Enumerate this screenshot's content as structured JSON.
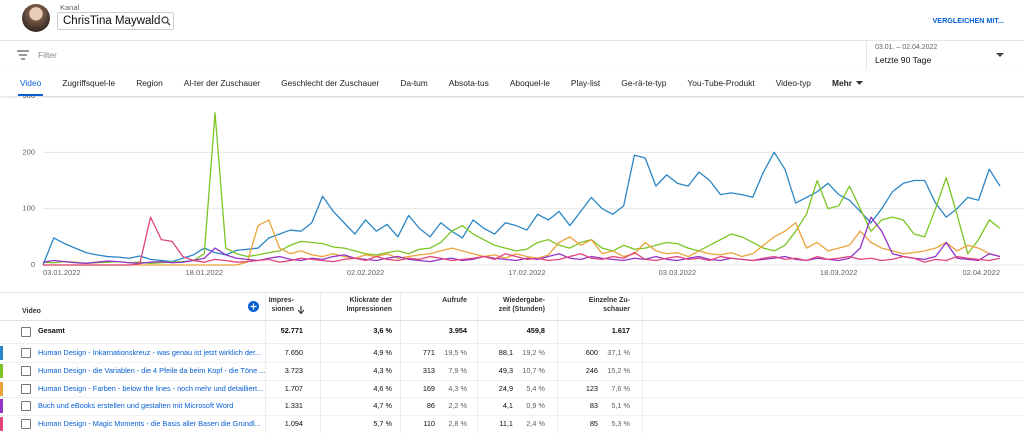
{
  "header": {
    "kanal": "Kanal",
    "channel": "ChrisTina Maywald",
    "compare": "VERGLEICHEN MIT..."
  },
  "filter": {
    "placeholder": "Filter",
    "date_range": "03.01. – 02.04.2022",
    "period": "Letzte 90 Tage"
  },
  "tabs": [
    "Video",
    "Zugriffsquel-le",
    "Region",
    "Al-ter der Zuschauer",
    "Geschlecht der Zuschauer",
    "Da-tum",
    "Absota-tus",
    "Aboquel-le",
    "Play-list",
    "Ge-rä-te-typ",
    "You-Tube-Produkt",
    "Video-typ"
  ],
  "more": "Mehr",
  "chart_data": {
    "type": "line",
    "x": [
      "03.01.2022",
      "04.01.2022",
      "05.01.2022",
      "06.01.2022",
      "07.01.2022",
      "08.01.2022",
      "09.01.2022",
      "10.01.2022",
      "11.01.2022",
      "12.01.2022",
      "13.01.2022",
      "14.01.2022",
      "15.01.2022",
      "16.01.2022",
      "17.01.2022",
      "18.01.2022",
      "19.01.2022",
      "20.01.2022",
      "21.01.2022",
      "22.01.2022",
      "23.01.2022",
      "24.01.2022",
      "25.01.2022",
      "26.01.2022",
      "27.01.2022",
      "28.01.2022",
      "29.01.2022",
      "30.01.2022",
      "31.01.2022",
      "01.02.2022",
      "02.02.2022",
      "03.02.2022",
      "04.02.2022",
      "05.02.2022",
      "06.02.2022",
      "07.02.2022",
      "08.02.2022",
      "09.02.2022",
      "10.02.2022",
      "11.02.2022",
      "12.02.2022",
      "13.02.2022",
      "14.02.2022",
      "15.02.2022",
      "16.02.2022",
      "17.02.2022",
      "18.02.2022",
      "19.02.2022",
      "20.02.2022",
      "21.02.2022",
      "22.02.2022",
      "23.02.2022",
      "24.02.2022",
      "25.02.2022",
      "26.02.2022",
      "27.02.2022",
      "28.02.2022",
      "01.03.2022",
      "02.03.2022",
      "03.03.2022",
      "04.03.2022",
      "05.03.2022",
      "06.03.2022",
      "07.03.2022",
      "08.03.2022",
      "09.03.2022",
      "10.03.2022",
      "11.03.2022",
      "12.03.2022",
      "13.03.2022",
      "14.03.2022",
      "15.03.2022",
      "16.03.2022",
      "17.03.2022",
      "18.03.2022",
      "19.03.2022",
      "20.03.2022",
      "21.03.2022",
      "22.03.2022",
      "23.03.2022",
      "24.03.2022",
      "25.03.2022",
      "26.03.2022",
      "27.03.2022",
      "28.03.2022",
      "29.03.2022",
      "30.03.2022",
      "31.03.2022",
      "01.04.2022",
      "02.04.2022"
    ],
    "xticks": [
      "03.01.2022",
      "18.01.2022",
      "02.02.2022",
      "17.02.2022",
      "03.03.2022",
      "18.03.2022",
      "02.04.2022"
    ],
    "ylim": [
      0,
      300
    ],
    "yticks": [
      0,
      100,
      200,
      300
    ],
    "grid": true,
    "series": [
      {
        "name": "Human Design - Inkarnationskreuz - was genau ist jetzt wirklich der...",
        "color": "#2b86c5",
        "values": [
          0,
          48,
          38,
          30,
          22,
          18,
          15,
          14,
          12,
          16,
          10,
          8,
          6,
          12,
          18,
          30,
          22,
          18,
          26,
          28,
          30,
          48,
          55,
          62,
          60,
          75,
          122,
          95,
          75,
          55,
          80,
          60,
          72,
          50,
          88,
          65,
          50,
          75,
          60,
          48,
          80,
          65,
          55,
          75,
          70,
          62,
          90,
          80,
          95,
          70,
          95,
          120,
          100,
          90,
          105,
          195,
          190,
          140,
          160,
          145,
          140,
          165,
          150,
          125,
          128,
          125,
          120,
          165,
          200,
          170,
          110,
          120,
          130,
          145,
          125,
          115,
          95,
          75,
          100,
          130,
          145,
          150,
          150,
          110,
          85,
          100,
          120,
          115,
          170,
          140
        ]
      },
      {
        "name": "Human Design - die Variablen - die 4 Pfeile da beim Kopf - die Töne ...",
        "color": "#7cc424",
        "values": [
          5,
          4,
          6,
          5,
          3,
          4,
          5,
          6,
          4,
          5,
          3,
          4,
          5,
          6,
          8,
          20,
          270,
          30,
          20,
          15,
          18,
          22,
          25,
          35,
          42,
          40,
          38,
          32,
          30,
          25,
          20,
          18,
          22,
          25,
          20,
          28,
          30,
          40,
          60,
          70,
          55,
          45,
          35,
          30,
          25,
          28,
          40,
          45,
          35,
          30,
          40,
          45,
          30,
          25,
          35,
          28,
          30,
          35,
          40,
          38,
          30,
          25,
          35,
          45,
          55,
          50,
          40,
          30,
          25,
          35,
          60,
          90,
          150,
          100,
          105,
          140,
          100,
          60,
          80,
          85,
          80,
          55,
          50,
          100,
          155,
          90,
          20,
          45,
          80,
          65
        ]
      },
      {
        "name": "Human Design - Farben - below the lines - noch mehr und detailliert...",
        "color": "#eba23a",
        "values": [
          0,
          0,
          0,
          0,
          0,
          0,
          0,
          0,
          0,
          0,
          0,
          0,
          0,
          0,
          0,
          0,
          0,
          0,
          0,
          5,
          70,
          80,
          30,
          20,
          25,
          18,
          15,
          20,
          15,
          12,
          18,
          15,
          20,
          12,
          15,
          18,
          20,
          25,
          30,
          25,
          20,
          15,
          18,
          12,
          20,
          15,
          12,
          18,
          40,
          50,
          35,
          45,
          20,
          25,
          15,
          20,
          40,
          25,
          20,
          22,
          15,
          25,
          20,
          18,
          22,
          15,
          20,
          35,
          50,
          60,
          75,
          30,
          40,
          25,
          30,
          35,
          60,
          40,
          30,
          25,
          20,
          22,
          25,
          30,
          40,
          25,
          35,
          30,
          20,
          15
        ]
      },
      {
        "name": "Buch und eBooks erstellen und gestalten mit Microsoft Word",
        "color": "#9334c9",
        "values": [
          5,
          8,
          6,
          4,
          3,
          5,
          7,
          6,
          4,
          3,
          5,
          6,
          4,
          5,
          8,
          12,
          30,
          18,
          12,
          10,
          8,
          12,
          15,
          10,
          8,
          12,
          10,
          15,
          18,
          12,
          10,
          8,
          12,
          15,
          10,
          8,
          6,
          10,
          12,
          8,
          10,
          15,
          12,
          10,
          8,
          12,
          10,
          15,
          20,
          12,
          10,
          15,
          12,
          10,
          8,
          12,
          10,
          15,
          10,
          8,
          12,
          15,
          10,
          8,
          12,
          10,
          8,
          10,
          12,
          15,
          10,
          8,
          12,
          10,
          8,
          12,
          30,
          85,
          60,
          20,
          15,
          12,
          10,
          15,
          40,
          12,
          10,
          8,
          20,
          15
        ]
      },
      {
        "name": "Human Design - Magic Moments - die Basis aller Basen die Grundl...",
        "color": "#e0457b",
        "values": [
          0,
          0,
          0,
          0,
          0,
          0,
          0,
          0,
          0,
          2,
          85,
          45,
          42,
          15,
          8,
          5,
          10,
          8,
          5,
          6,
          8,
          10,
          5,
          8,
          12,
          10,
          8,
          6,
          10,
          12,
          8,
          15,
          10,
          8,
          12,
          10,
          15,
          12,
          8,
          10,
          12,
          15,
          10,
          20,
          15,
          10,
          12,
          8,
          10,
          15,
          20,
          12,
          10,
          15,
          12,
          22,
          10,
          8,
          12,
          15,
          10,
          12,
          8,
          15,
          12,
          10,
          8,
          12,
          15,
          10,
          12,
          8,
          15,
          10,
          12,
          15,
          10,
          12,
          8,
          10,
          15,
          12,
          5,
          10,
          8,
          15,
          12,
          10,
          8,
          12
        ]
      }
    ]
  },
  "table": {
    "columns": [
      "Video",
      "Impres-\nsionen",
      "Klickrate der\nImpressionen",
      "Aufrufe",
      "Wiedergabe-\nzeit (Stunden)",
      "Einzelne Zu-\nschauer"
    ],
    "total": {
      "label": "Gesamt",
      "cells": [
        [
          "52.771"
        ],
        [
          "3,6 %"
        ],
        [
          "3.954"
        ],
        [
          "459,8"
        ],
        [
          "1.617"
        ]
      ]
    },
    "rows": [
      {
        "cells": [
          [
            "7.650"
          ],
          [
            "4,9 %"
          ],
          [
            "771",
            "19,5 %"
          ],
          [
            "88,1",
            "19,2 %"
          ],
          [
            "600",
            "37,1 %"
          ]
        ]
      },
      {
        "cells": [
          [
            "3.723"
          ],
          [
            "4,3 %"
          ],
          [
            "313",
            "7,9 %"
          ],
          [
            "49,3",
            "10,7 %"
          ],
          [
            "246",
            "15,2 %"
          ]
        ]
      },
      {
        "cells": [
          [
            "1.707"
          ],
          [
            "4,6 %"
          ],
          [
            "169",
            "4,3 %"
          ],
          [
            "24,9",
            "5,4 %"
          ],
          [
            "123",
            "7,6 %"
          ]
        ]
      },
      {
        "cells": [
          [
            "1.331"
          ],
          [
            "4,7 %"
          ],
          [
            "86",
            "2,2 %"
          ],
          [
            "4,1",
            "0,9 %"
          ],
          [
            "83",
            "5,1 %"
          ]
        ]
      },
      {
        "cells": [
          [
            "1.094"
          ],
          [
            "5,7 %"
          ],
          [
            "110",
            "2,8 %"
          ],
          [
            "11,1",
            "2,4 %"
          ],
          [
            "85",
            "5,3 %"
          ]
        ]
      }
    ]
  }
}
